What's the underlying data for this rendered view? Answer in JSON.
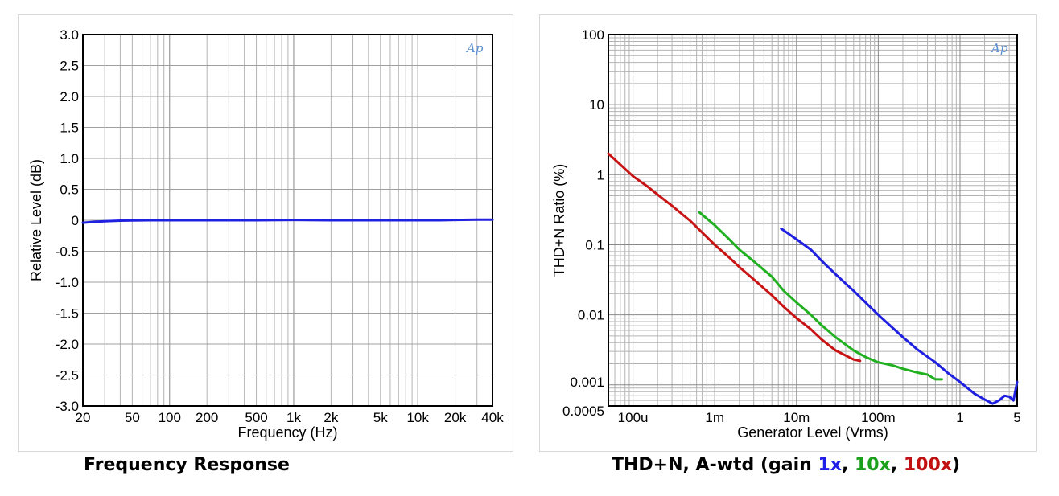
{
  "chart_data": [
    {
      "type": "line",
      "caption": "Frequency Response",
      "xlabel": "Frequency (Hz)",
      "ylabel": "Relative Level (dB)",
      "xscale": "log",
      "xlim": [
        20,
        40000
      ],
      "ylim": [
        -3.0,
        3.0
      ],
      "xticks": [
        {
          "v": 20,
          "label": "20"
        },
        {
          "v": 50,
          "label": "50"
        },
        {
          "v": 100,
          "label": "100"
        },
        {
          "v": 200,
          "label": "200"
        },
        {
          "v": 500,
          "label": "500"
        },
        {
          "v": 1000,
          "label": "1k"
        },
        {
          "v": 2000,
          "label": "2k"
        },
        {
          "v": 5000,
          "label": "5k"
        },
        {
          "v": 10000,
          "label": "10k"
        },
        {
          "v": 20000,
          "label": "20k"
        },
        {
          "v": 40000,
          "label": "40k"
        }
      ],
      "yticks": [
        {
          "v": 3.0,
          "label": "3.0"
        },
        {
          "v": 2.5,
          "label": "2.5"
        },
        {
          "v": 2.0,
          "label": "2.0"
        },
        {
          "v": 1.5,
          "label": "1.5"
        },
        {
          "v": 1.0,
          "label": "1.0"
        },
        {
          "v": 0.5,
          "label": "0.5"
        },
        {
          "v": 0,
          "label": "0"
        },
        {
          "v": -0.5,
          "label": "-0.5"
        },
        {
          "v": -1.0,
          "label": "-1.0"
        },
        {
          "v": -1.5,
          "label": "-1.5"
        },
        {
          "v": -2.0,
          "label": "-2.0"
        },
        {
          "v": -2.5,
          "label": "-2.5"
        },
        {
          "v": -3.0,
          "label": "-3.0"
        }
      ],
      "grid": true,
      "logo": "Ap",
      "series": [
        {
          "color": "#2020e0",
          "x": [
            20,
            25,
            30,
            40,
            50,
            70,
            100,
            200,
            500,
            1000,
            2000,
            5000,
            10000,
            15000,
            20000,
            30000,
            40000
          ],
          "y": [
            -0.04,
            -0.025,
            -0.015,
            -0.006,
            -0.002,
            0.0,
            0.0,
            0.0,
            0.0,
            0.005,
            0.0,
            0.0,
            0.0,
            0.0,
            0.005,
            0.01,
            0.01
          ]
        }
      ]
    },
    {
      "type": "line",
      "caption": "THD+N, A-wtd (gain ",
      "caption_parts": [
        {
          "text": "1x",
          "color": "#1e1ee6"
        },
        {
          "text": "10x",
          "color": "#1aa01a"
        },
        {
          "text": "100x",
          "color": "#c01010"
        }
      ],
      "caption_sep": ", ",
      "caption_end": ")",
      "xlabel": "Generator Level (Vrms)",
      "ylabel": "THD+N Ratio (%)",
      "xscale": "log",
      "yscale": "log",
      "xlim": [
        5e-05,
        5
      ],
      "ylim": [
        0.0005,
        100
      ],
      "xticks": [
        {
          "v": 0.0001,
          "label": "100u"
        },
        {
          "v": 0.001,
          "label": "1m"
        },
        {
          "v": 0.01,
          "label": "10m"
        },
        {
          "v": 0.1,
          "label": "100m"
        },
        {
          "v": 1,
          "label": "1"
        },
        {
          "v": 5,
          "label": "5"
        }
      ],
      "yticks": [
        {
          "v": 100,
          "label": "100"
        },
        {
          "v": 10,
          "label": "10"
        },
        {
          "v": 1,
          "label": "1"
        },
        {
          "v": 0.1,
          "label": "0.1"
        },
        {
          "v": 0.01,
          "label": "0.01"
        },
        {
          "v": 0.001,
          "label": "0.001"
        },
        {
          "v": 0.0005,
          "label": "0.0005"
        }
      ],
      "grid": true,
      "logo": "Ap",
      "series": [
        {
          "name": "1x",
          "color": "#2020e0",
          "x": [
            0.0065,
            0.01,
            0.015,
            0.02,
            0.03,
            0.05,
            0.07,
            0.1,
            0.15,
            0.2,
            0.3,
            0.5,
            0.7,
            1.0,
            1.5,
            2.0,
            2.5,
            3.0,
            3.5,
            4.0,
            4.5,
            5.0
          ],
          "y": [
            0.17,
            0.12,
            0.085,
            0.06,
            0.038,
            0.022,
            0.015,
            0.01,
            0.0065,
            0.0048,
            0.0032,
            0.0021,
            0.0015,
            0.0011,
            0.00075,
            0.00062,
            0.00054,
            0.0006,
            0.0007,
            0.00068,
            0.0006,
            0.0011
          ]
        },
        {
          "name": "10x",
          "color": "#20b020",
          "x": [
            0.00065,
            0.001,
            0.0015,
            0.002,
            0.003,
            0.005,
            0.007,
            0.01,
            0.015,
            0.02,
            0.03,
            0.05,
            0.07,
            0.1,
            0.15,
            0.2,
            0.3,
            0.4,
            0.5,
            0.6
          ],
          "y": [
            0.29,
            0.19,
            0.12,
            0.085,
            0.058,
            0.035,
            0.022,
            0.015,
            0.01,
            0.0072,
            0.0048,
            0.0031,
            0.0025,
            0.0021,
            0.0019,
            0.0017,
            0.0015,
            0.0014,
            0.0012,
            0.0012
          ]
        },
        {
          "name": "100x",
          "color": "#c81414",
          "x": [
            5e-05,
            7e-05,
            0.0001,
            0.00015,
            0.0002,
            0.0003,
            0.0005,
            0.0007,
            0.001,
            0.0015,
            0.002,
            0.003,
            0.005,
            0.007,
            0.01,
            0.015,
            0.02,
            0.03,
            0.05,
            0.06
          ],
          "y": [
            2.0,
            1.4,
            0.95,
            0.68,
            0.52,
            0.36,
            0.22,
            0.15,
            0.1,
            0.066,
            0.048,
            0.032,
            0.019,
            0.013,
            0.009,
            0.0062,
            0.0045,
            0.0031,
            0.0023,
            0.0022
          ]
        }
      ]
    }
  ]
}
